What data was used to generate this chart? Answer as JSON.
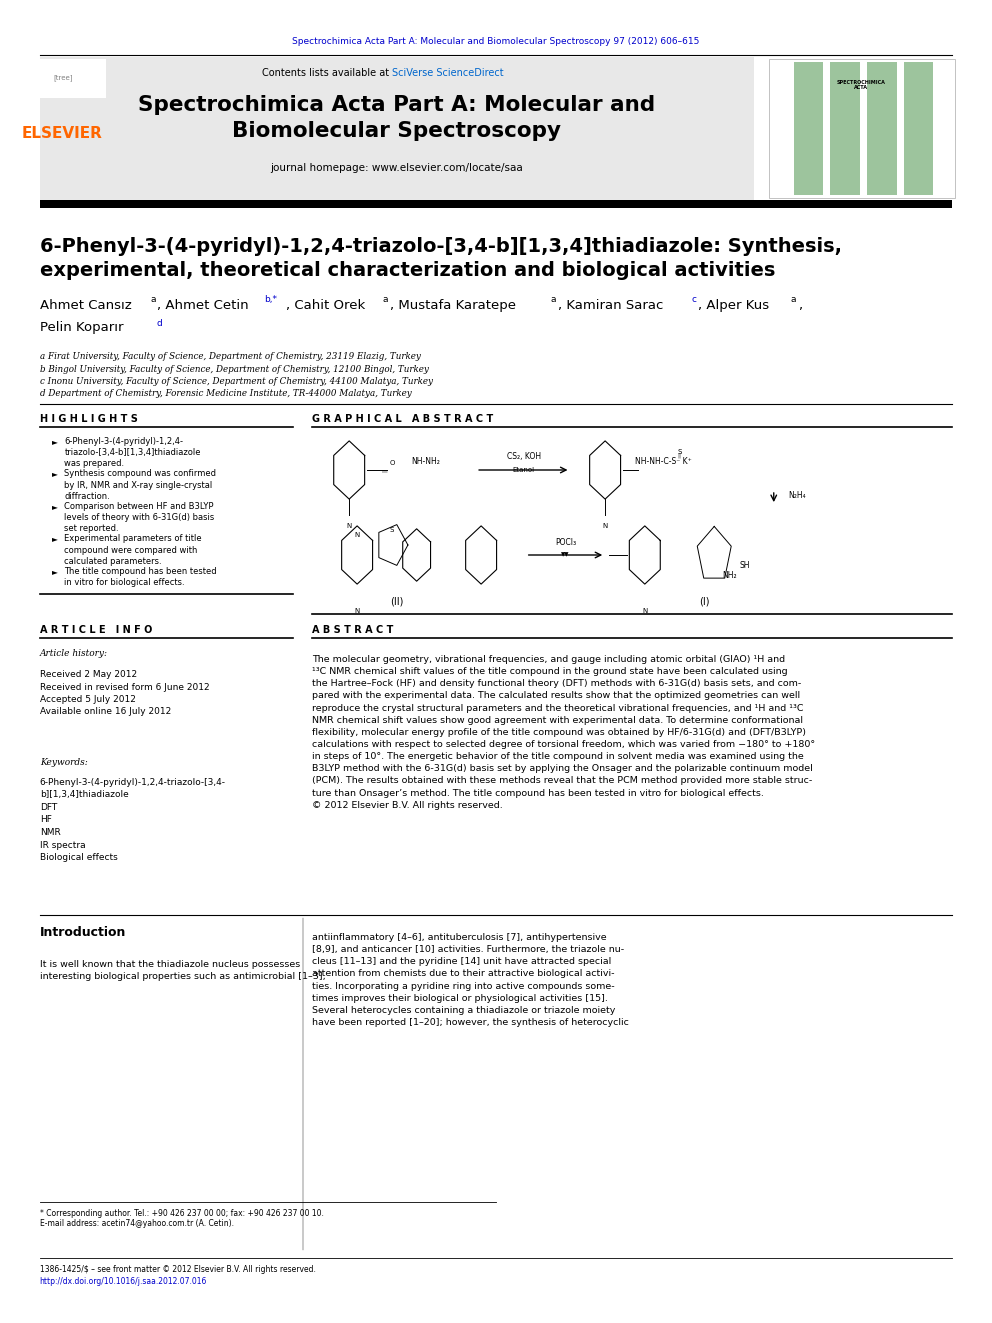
{
  "page_width": 9.92,
  "page_height": 13.23,
  "bg_color": "#ffffff",
  "header_journal_text": "Spectrochimica Acta Part A: Molecular and Biomolecular Spectroscopy 97 (2012) 606–615",
  "header_journal_color": "#0000cc",
  "journal_banner_bg": "#e8e8e8",
  "elsevier_color": "#ff6600",
  "article_title_line1": "6-Phenyl-3-(4-pyridyl)-1,2,4-triazolo-[3,4-b][1,3,4]thiadiazole: Synthesis,",
  "article_title_line2": "experimental, theoretical characterization and biological activities",
  "affil_a": "a Firat University, Faculty of Science, Department of Chemistry, 23119 Elazig, Turkey",
  "affil_b": "b Bingol University, Faculty of Science, Department of Chemistry, 12100 Bingol, Turkey",
  "affil_c": "c Inonu University, Faculty of Science, Department of Chemistry, 44100 Malatya, Turkey",
  "affil_d": "d Department of Chemistry, Forensic Medicine Institute, TR-44000 Malatya, Turkey",
  "highlights_title": "H I G H L I G H T S",
  "highlights": [
    "6-Phenyl-3-(4-pyridyl)-1,2,4-\ntriazolo-[3,4-b][1,3,4]thiadiazole\nwas prepared.",
    "Synthesis compound was confirmed\nby IR, NMR and X-ray single-crystal\ndiffraction.",
    "Comparison between HF and B3LYP\nlevels of theory with 6-31G(d) basis\nset reported.",
    "Experimental parameters of title\ncompound were compared with\ncalculated parameters.",
    "The title compound has been tested\nin vitro for biological effects."
  ],
  "graphical_abstract_title": "G R A P H I C A L   A B S T R A C T",
  "article_info_title": "A R T I C L E   I N F O",
  "article_history_label": "Article history:",
  "article_history": "Received 2 May 2012\nReceived in revised form 6 June 2012\nAccepted 5 July 2012\nAvailable online 16 July 2012",
  "keywords_label": "Keywords:",
  "keywords": "6-Phenyl-3-(4-pyridyl)-1,2,4-triazolo-[3,4-\nb][1,3,4]thiadiazole\nDFT\nHF\nNMR\nIR spectra\nBiological effects",
  "abstract_title": "A B S T R A C T",
  "abstract_text": "The molecular geometry, vibrational frequencies, and gauge including atomic orbital (GIAO) ¹H and\n¹³C NMR chemical shift values of the title compound in the ground state have been calculated using\nthe Hartree–Fock (HF) and density functional theory (DFT) methods with 6-31G(d) basis sets, and com-\npared with the experimental data. The calculated results show that the optimized geometries can well\nreproduce the crystal structural parameters and the theoretical vibrational frequencies, and ¹H and ¹³C\nNMR chemical shift values show good agreement with experimental data. To determine conformational\nflexibility, molecular energy profile of the title compound was obtained by HF/6-31G(d) and (DFT/B3LYP)\ncalculations with respect to selected degree of torsional freedom, which was varied from −180° to +180°\nin steps of 10°. The energetic behavior of the title compound in solvent media was examined using the\nB3LYP method with the 6-31G(d) basis set by applying the Onsager and the polarizable continuum model\n(PCM). The results obtained with these methods reveal that the PCM method provided more stable struc-\nture than Onsager’s method. The title compound has been tested in vitro for biological effects.\n© 2012 Elsevier B.V. All rights reserved.",
  "intro_title": "Introduction",
  "intro_text": "It is well known that the thiadiazole nucleus possesses\ninteresting biological properties such as antimicrobial [1–3],",
  "right_col_text": "antiinflammatory [4–6], antituberculosis [7], antihypertensive\n[8,9], and anticancer [10] activities. Furthermore, the triazole nu-\ncleus [11–13] and the pyridine [14] unit have attracted special\nattention from chemists due to their attractive biological activi-\nties. Incorporating a pyridine ring into active compounds some-\ntimes improves their biological or physiological activities [15].\nSeveral heterocycles containing a thiadiazole or triazole moiety\nhave been reported [1–20]; however, the synthesis of heterocyclic",
  "footer_corresp": "* Corresponding author. Tel.: +90 426 237 00 00; fax: +90 426 237 00 10.",
  "footer_email": "E-mail address: acetin74@yahoo.com.tr (A. Cetin).",
  "footer_issn": "1386-1425/$ – see front matter © 2012 Elsevier B.V. All rights reserved.",
  "footer_doi": "http://dx.doi.org/10.1016/j.saa.2012.07.016"
}
